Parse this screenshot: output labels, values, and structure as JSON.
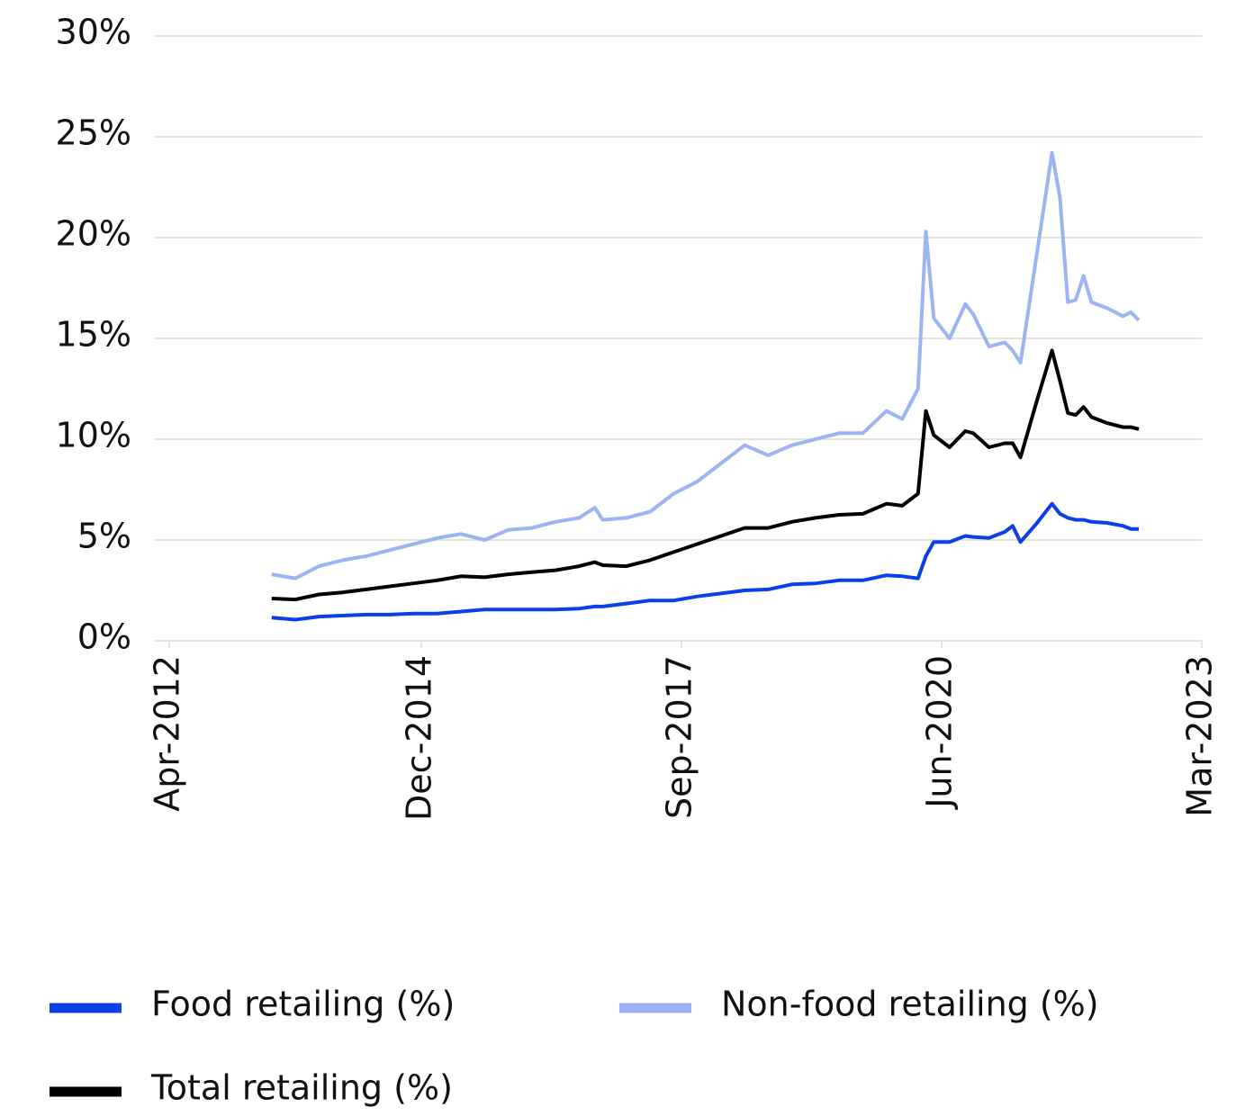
{
  "chart_data": {
    "type": "line",
    "x": [
      "May-2013",
      "Aug-2013",
      "Nov-2013",
      "Feb-2014",
      "May-2014",
      "Aug-2014",
      "Nov-2014",
      "Feb-2015",
      "May-2015",
      "Aug-2015",
      "Nov-2015",
      "Feb-2016",
      "May-2016",
      "Aug-2016",
      "Oct-2016",
      "Nov-2016",
      "Feb-2017",
      "May-2017",
      "Aug-2017",
      "Nov-2017",
      "Feb-2018",
      "May-2018",
      "Aug-2018",
      "Nov-2018",
      "Feb-2019",
      "May-2019",
      "Aug-2019",
      "Nov-2019",
      "Jan-2020",
      "Mar-2020",
      "Apr-2020",
      "May-2020",
      "Jul-2020",
      "Sep-2020",
      "Oct-2020",
      "Dec-2020",
      "Feb-2021",
      "Mar-2021",
      "Apr-2021",
      "Jun-2021",
      "Aug-2021",
      "Sep-2021",
      "Oct-2021",
      "Nov-2021",
      "Dec-2021",
      "Jan-2022",
      "Mar-2022",
      "May-2022",
      "Jun-2022",
      "Jul-2022"
    ],
    "series": [
      {
        "name": "Food retailing (%)",
        "color": "#0b3fe8",
        "values": [
          1.15,
          1.05,
          1.2,
          1.25,
          1.3,
          1.3,
          1.35,
          1.35,
          1.45,
          1.55,
          1.55,
          1.55,
          1.55,
          1.6,
          1.7,
          1.7,
          1.85,
          2.0,
          2.0,
          2.2,
          2.35,
          2.5,
          2.55,
          2.8,
          2.85,
          3.0,
          3.0,
          3.25,
          3.2,
          3.1,
          4.2,
          4.9,
          4.9,
          5.2,
          5.15,
          5.1,
          5.4,
          5.7,
          4.9,
          5.8,
          6.8,
          6.3,
          6.1,
          6.0,
          6.0,
          5.9,
          5.85,
          5.7,
          5.55,
          5.55
        ]
      },
      {
        "name": "Non-food retailing (%)",
        "color": "#9db4f2",
        "values": [
          3.3,
          3.1,
          3.7,
          4.0,
          4.2,
          4.5,
          4.8,
          5.1,
          5.3,
          5.0,
          5.5,
          5.6,
          5.9,
          6.1,
          6.6,
          6.0,
          6.1,
          6.4,
          7.3,
          7.9,
          8.8,
          9.7,
          9.2,
          9.7,
          10.0,
          10.3,
          10.3,
          11.4,
          11.0,
          12.5,
          20.3,
          16.0,
          15.0,
          16.7,
          16.2,
          14.6,
          14.8,
          14.4,
          13.8,
          19.0,
          24.2,
          22,
          16.8,
          16.9,
          18.1,
          16.8,
          16.5,
          16.1,
          16.3,
          15.9
        ]
      },
      {
        "name": "Total retailing (%)",
        "color": "#000000",
        "values": [
          2.1,
          2.05,
          2.3,
          2.4,
          2.55,
          2.7,
          2.85,
          3.0,
          3.2,
          3.15,
          3.3,
          3.4,
          3.5,
          3.7,
          3.9,
          3.75,
          3.7,
          4.0,
          4.4,
          4.8,
          5.2,
          5.6,
          5.6,
          5.9,
          6.1,
          6.25,
          6.3,
          6.8,
          6.7,
          7.3,
          11.4,
          10.2,
          9.6,
          10.4,
          10.3,
          9.6,
          9.8,
          9.8,
          9.1,
          11.8,
          14.4,
          12.9,
          11.3,
          11.2,
          11.6,
          11.1,
          10.8,
          10.6,
          10.6,
          10.5
        ]
      }
    ],
    "xlim": [
      "Apr-2012",
      "Mar-2023"
    ],
    "xticks": [
      "Apr-2012",
      "Dec-2014",
      "Sep-2017",
      "Jun-2020",
      "Mar-2023"
    ],
    "ylim": [
      0,
      30
    ],
    "yticks": [
      {
        "value": 0,
        "label": "0%"
      },
      {
        "value": 5,
        "label": "5%"
      },
      {
        "value": 10,
        "label": "10%"
      },
      {
        "value": 15,
        "label": "15%"
      },
      {
        "value": 20,
        "label": "20%"
      },
      {
        "value": 25,
        "label": "25%"
      },
      {
        "value": 30,
        "label": "30%"
      }
    ],
    "grid": true,
    "legend": "bottom"
  }
}
